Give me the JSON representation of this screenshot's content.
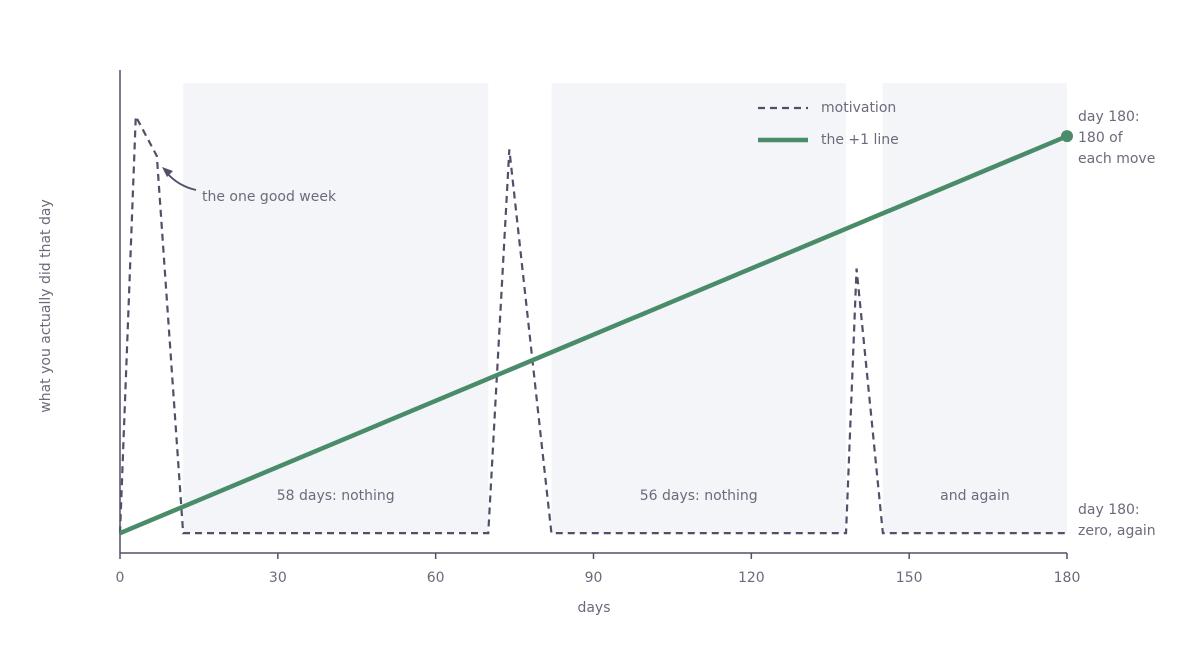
{
  "chart_data": {
    "type": "line",
    "x_label": "days",
    "y_label": "what you actually did that day",
    "xlim": [
      0,
      180
    ],
    "xticks": [
      0,
      30,
      60,
      90,
      120,
      150,
      180
    ],
    "ylim": [
      -9,
      210
    ],
    "spans": [
      {
        "start": 12,
        "end": 70,
        "label": "58 days: nothing"
      },
      {
        "start": 82,
        "end": 138,
        "label": "56 days: nothing"
      },
      {
        "start": 145,
        "end": 180,
        "label": "and again"
      }
    ],
    "series": [
      {
        "name": "motivation",
        "color": "#50506a",
        "dashed": true,
        "x": [
          0,
          3,
          7,
          12,
          70,
          74,
          82,
          138,
          140,
          145,
          180
        ],
        "values": [
          0,
          189,
          171,
          0,
          0,
          174,
          0,
          0,
          120,
          0,
          0
        ]
      },
      {
        "name": "the +1 line",
        "color": "#4a8c6a",
        "dashed": false,
        "x": [
          0,
          180
        ],
        "values": [
          0,
          180
        ]
      }
    ],
    "annotations": [
      {
        "lines": [
          "the one good week"
        ]
      },
      {
        "lines": [
          "day 180:",
          "180 of",
          "each move"
        ]
      },
      {
        "lines": [
          "day 180:",
          "zero, again"
        ]
      }
    ],
    "legend": "top-right"
  }
}
